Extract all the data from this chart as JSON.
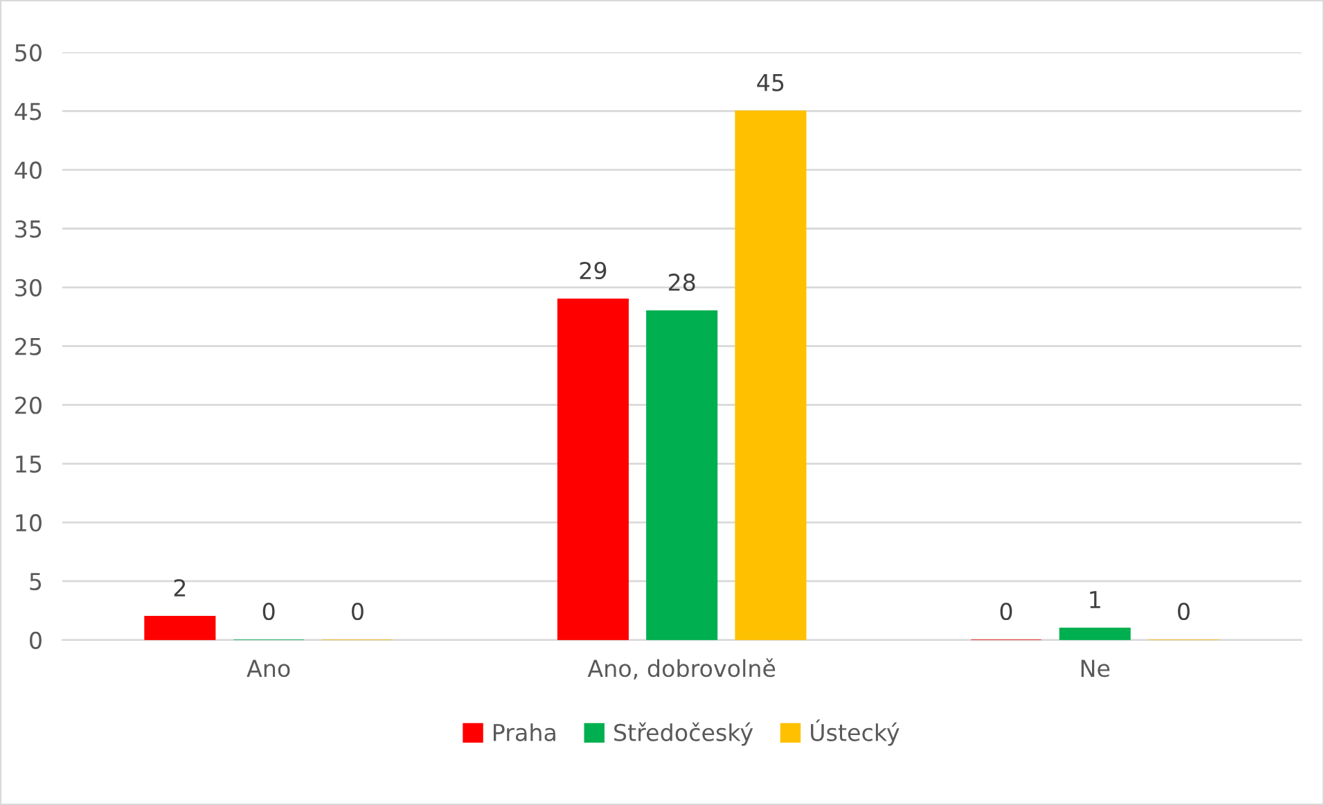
{
  "chart_data": {
    "type": "bar",
    "categories": [
      "Ano",
      "Ano, dobrovolně",
      "Ne"
    ],
    "series": [
      {
        "name": "Praha",
        "color": "#ff0000",
        "values": [
          2,
          29,
          0
        ]
      },
      {
        "name": "Středočeský",
        "color": "#00b050",
        "values": [
          0,
          28,
          1
        ]
      },
      {
        "name": "Ústecký",
        "color": "#ffc000",
        "values": [
          0,
          45,
          0
        ]
      }
    ],
    "ylim": [
      0,
      50
    ],
    "yticks": [
      0,
      5,
      10,
      15,
      20,
      25,
      30,
      35,
      40,
      45,
      50
    ],
    "grid": "y",
    "legend": "bottom",
    "data_labels": true
  }
}
